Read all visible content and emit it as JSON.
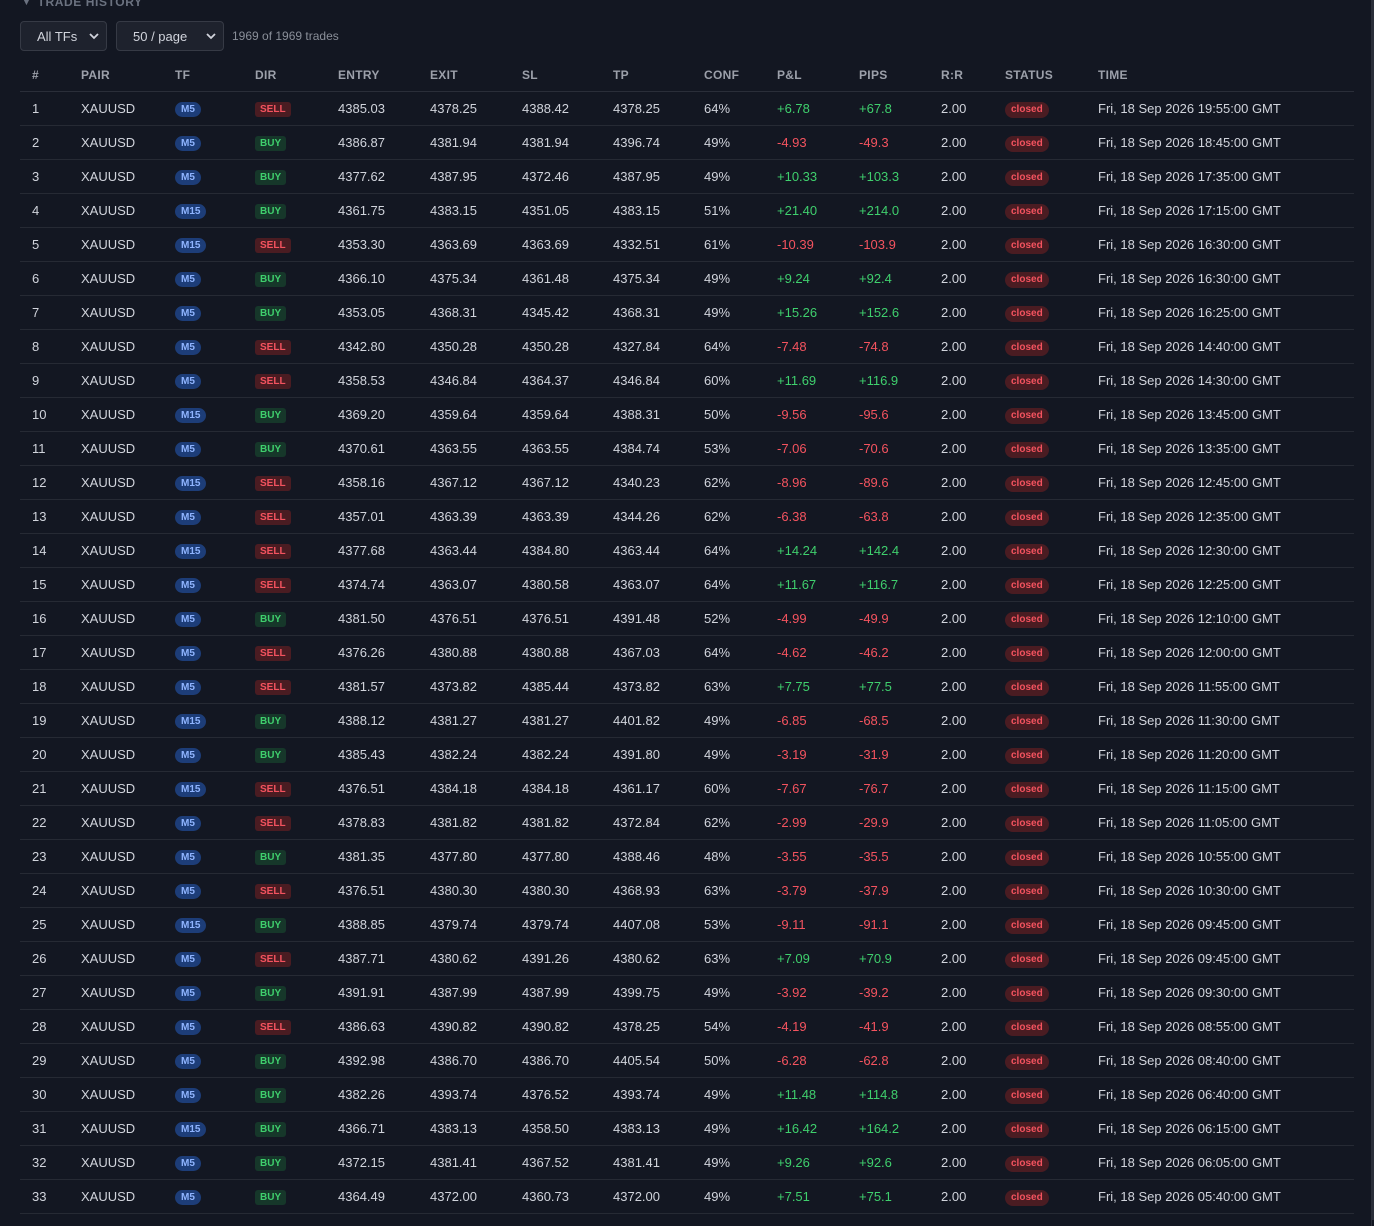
{
  "section": {
    "title": "TRADE HISTORY"
  },
  "controls": {
    "timeframe_filter": "All TFs",
    "page_size": "50 / page",
    "trade_count": "1969 of 1969 trades"
  },
  "table": {
    "columns": [
      "#",
      "PAIR",
      "TF",
      "DIR",
      "ENTRY",
      "EXIT",
      "SL",
      "TP",
      "CONF",
      "P&L",
      "PIPS",
      "R:R",
      "STATUS",
      "TIME"
    ],
    "rows": [
      [
        "1",
        "XAUUSD",
        "M5",
        "SELL",
        "4385.03",
        "4378.25",
        "4388.42",
        "4378.25",
        "64%",
        "+6.78",
        "+67.8",
        "2.00",
        "closed",
        "Fri, 18 Sep 2026 19:55:00 GMT"
      ],
      [
        "2",
        "XAUUSD",
        "M5",
        "BUY",
        "4386.87",
        "4381.94",
        "4381.94",
        "4396.74",
        "49%",
        "-4.93",
        "-49.3",
        "2.00",
        "closed",
        "Fri, 18 Sep 2026 18:45:00 GMT"
      ],
      [
        "3",
        "XAUUSD",
        "M5",
        "BUY",
        "4377.62",
        "4387.95",
        "4372.46",
        "4387.95",
        "49%",
        "+10.33",
        "+103.3",
        "2.00",
        "closed",
        "Fri, 18 Sep 2026 17:35:00 GMT"
      ],
      [
        "4",
        "XAUUSD",
        "M15",
        "BUY",
        "4361.75",
        "4383.15",
        "4351.05",
        "4383.15",
        "51%",
        "+21.40",
        "+214.0",
        "2.00",
        "closed",
        "Fri, 18 Sep 2026 17:15:00 GMT"
      ],
      [
        "5",
        "XAUUSD",
        "M15",
        "SELL",
        "4353.30",
        "4363.69",
        "4363.69",
        "4332.51",
        "61%",
        "-10.39",
        "-103.9",
        "2.00",
        "closed",
        "Fri, 18 Sep 2026 16:30:00 GMT"
      ],
      [
        "6",
        "XAUUSD",
        "M5",
        "BUY",
        "4366.10",
        "4375.34",
        "4361.48",
        "4375.34",
        "49%",
        "+9.24",
        "+92.4",
        "2.00",
        "closed",
        "Fri, 18 Sep 2026 16:30:00 GMT"
      ],
      [
        "7",
        "XAUUSD",
        "M5",
        "BUY",
        "4353.05",
        "4368.31",
        "4345.42",
        "4368.31",
        "49%",
        "+15.26",
        "+152.6",
        "2.00",
        "closed",
        "Fri, 18 Sep 2026 16:25:00 GMT"
      ],
      [
        "8",
        "XAUUSD",
        "M5",
        "SELL",
        "4342.80",
        "4350.28",
        "4350.28",
        "4327.84",
        "64%",
        "-7.48",
        "-74.8",
        "2.00",
        "closed",
        "Fri, 18 Sep 2026 14:40:00 GMT"
      ],
      [
        "9",
        "XAUUSD",
        "M5",
        "SELL",
        "4358.53",
        "4346.84",
        "4364.37",
        "4346.84",
        "60%",
        "+11.69",
        "+116.9",
        "2.00",
        "closed",
        "Fri, 18 Sep 2026 14:30:00 GMT"
      ],
      [
        "10",
        "XAUUSD",
        "M15",
        "BUY",
        "4369.20",
        "4359.64",
        "4359.64",
        "4388.31",
        "50%",
        "-9.56",
        "-95.6",
        "2.00",
        "closed",
        "Fri, 18 Sep 2026 13:45:00 GMT"
      ],
      [
        "11",
        "XAUUSD",
        "M5",
        "BUY",
        "4370.61",
        "4363.55",
        "4363.55",
        "4384.74",
        "53%",
        "-7.06",
        "-70.6",
        "2.00",
        "closed",
        "Fri, 18 Sep 2026 13:35:00 GMT"
      ],
      [
        "12",
        "XAUUSD",
        "M15",
        "SELL",
        "4358.16",
        "4367.12",
        "4367.12",
        "4340.23",
        "62%",
        "-8.96",
        "-89.6",
        "2.00",
        "closed",
        "Fri, 18 Sep 2026 12:45:00 GMT"
      ],
      [
        "13",
        "XAUUSD",
        "M5",
        "SELL",
        "4357.01",
        "4363.39",
        "4363.39",
        "4344.26",
        "62%",
        "-6.38",
        "-63.8",
        "2.00",
        "closed",
        "Fri, 18 Sep 2026 12:35:00 GMT"
      ],
      [
        "14",
        "XAUUSD",
        "M15",
        "SELL",
        "4377.68",
        "4363.44",
        "4384.80",
        "4363.44",
        "64%",
        "+14.24",
        "+142.4",
        "2.00",
        "closed",
        "Fri, 18 Sep 2026 12:30:00 GMT"
      ],
      [
        "15",
        "XAUUSD",
        "M5",
        "SELL",
        "4374.74",
        "4363.07",
        "4380.58",
        "4363.07",
        "64%",
        "+11.67",
        "+116.7",
        "2.00",
        "closed",
        "Fri, 18 Sep 2026 12:25:00 GMT"
      ],
      [
        "16",
        "XAUUSD",
        "M5",
        "BUY",
        "4381.50",
        "4376.51",
        "4376.51",
        "4391.48",
        "52%",
        "-4.99",
        "-49.9",
        "2.00",
        "closed",
        "Fri, 18 Sep 2026 12:10:00 GMT"
      ],
      [
        "17",
        "XAUUSD",
        "M5",
        "SELL",
        "4376.26",
        "4380.88",
        "4380.88",
        "4367.03",
        "64%",
        "-4.62",
        "-46.2",
        "2.00",
        "closed",
        "Fri, 18 Sep 2026 12:00:00 GMT"
      ],
      [
        "18",
        "XAUUSD",
        "M5",
        "SELL",
        "4381.57",
        "4373.82",
        "4385.44",
        "4373.82",
        "63%",
        "+7.75",
        "+77.5",
        "2.00",
        "closed",
        "Fri, 18 Sep 2026 11:55:00 GMT"
      ],
      [
        "19",
        "XAUUSD",
        "M15",
        "BUY",
        "4388.12",
        "4381.27",
        "4381.27",
        "4401.82",
        "49%",
        "-6.85",
        "-68.5",
        "2.00",
        "closed",
        "Fri, 18 Sep 2026 11:30:00 GMT"
      ],
      [
        "20",
        "XAUUSD",
        "M5",
        "BUY",
        "4385.43",
        "4382.24",
        "4382.24",
        "4391.80",
        "49%",
        "-3.19",
        "-31.9",
        "2.00",
        "closed",
        "Fri, 18 Sep 2026 11:20:00 GMT"
      ],
      [
        "21",
        "XAUUSD",
        "M15",
        "SELL",
        "4376.51",
        "4384.18",
        "4384.18",
        "4361.17",
        "60%",
        "-7.67",
        "-76.7",
        "2.00",
        "closed",
        "Fri, 18 Sep 2026 11:15:00 GMT"
      ],
      [
        "22",
        "XAUUSD",
        "M5",
        "SELL",
        "4378.83",
        "4381.82",
        "4381.82",
        "4372.84",
        "62%",
        "-2.99",
        "-29.9",
        "2.00",
        "closed",
        "Fri, 18 Sep 2026 11:05:00 GMT"
      ],
      [
        "23",
        "XAUUSD",
        "M5",
        "BUY",
        "4381.35",
        "4377.80",
        "4377.80",
        "4388.46",
        "48%",
        "-3.55",
        "-35.5",
        "2.00",
        "closed",
        "Fri, 18 Sep 2026 10:55:00 GMT"
      ],
      [
        "24",
        "XAUUSD",
        "M5",
        "SELL",
        "4376.51",
        "4380.30",
        "4380.30",
        "4368.93",
        "63%",
        "-3.79",
        "-37.9",
        "2.00",
        "closed",
        "Fri, 18 Sep 2026 10:30:00 GMT"
      ],
      [
        "25",
        "XAUUSD",
        "M15",
        "BUY",
        "4388.85",
        "4379.74",
        "4379.74",
        "4407.08",
        "53%",
        "-9.11",
        "-91.1",
        "2.00",
        "closed",
        "Fri, 18 Sep 2026 09:45:00 GMT"
      ],
      [
        "26",
        "XAUUSD",
        "M5",
        "SELL",
        "4387.71",
        "4380.62",
        "4391.26",
        "4380.62",
        "63%",
        "+7.09",
        "+70.9",
        "2.00",
        "closed",
        "Fri, 18 Sep 2026 09:45:00 GMT"
      ],
      [
        "27",
        "XAUUSD",
        "M5",
        "BUY",
        "4391.91",
        "4387.99",
        "4387.99",
        "4399.75",
        "49%",
        "-3.92",
        "-39.2",
        "2.00",
        "closed",
        "Fri, 18 Sep 2026 09:30:00 GMT"
      ],
      [
        "28",
        "XAUUSD",
        "M5",
        "SELL",
        "4386.63",
        "4390.82",
        "4390.82",
        "4378.25",
        "54%",
        "-4.19",
        "-41.9",
        "2.00",
        "closed",
        "Fri, 18 Sep 2026 08:55:00 GMT"
      ],
      [
        "29",
        "XAUUSD",
        "M5",
        "BUY",
        "4392.98",
        "4386.70",
        "4386.70",
        "4405.54",
        "50%",
        "-6.28",
        "-62.8",
        "2.00",
        "closed",
        "Fri, 18 Sep 2026 08:40:00 GMT"
      ],
      [
        "30",
        "XAUUSD",
        "M5",
        "BUY",
        "4382.26",
        "4393.74",
        "4376.52",
        "4393.74",
        "49%",
        "+11.48",
        "+114.8",
        "2.00",
        "closed",
        "Fri, 18 Sep 2026 06:40:00 GMT"
      ],
      [
        "31",
        "XAUUSD",
        "M15",
        "BUY",
        "4366.71",
        "4383.13",
        "4358.50",
        "4383.13",
        "49%",
        "+16.42",
        "+164.2",
        "2.00",
        "closed",
        "Fri, 18 Sep 2026 06:15:00 GMT"
      ],
      [
        "32",
        "XAUUSD",
        "M5",
        "BUY",
        "4372.15",
        "4381.41",
        "4367.52",
        "4381.41",
        "49%",
        "+9.26",
        "+92.6",
        "2.00",
        "closed",
        "Fri, 18 Sep 2026 06:05:00 GMT"
      ],
      [
        "33",
        "XAUUSD",
        "M5",
        "BUY",
        "4364.49",
        "4372.00",
        "4360.73",
        "4372.00",
        "49%",
        "+7.51",
        "+75.1",
        "2.00",
        "closed",
        "Fri, 18 Sep 2026 05:40:00 GMT"
      ]
    ]
  },
  "colors": {
    "background": "#131722",
    "positive": "#3fcf6d",
    "negative": "#f4535f",
    "tf_badge": "#1d3d78"
  },
  "icons": {
    "section_toggle": "caret-down-icon",
    "select_arrow": "chevron-down-icon"
  }
}
